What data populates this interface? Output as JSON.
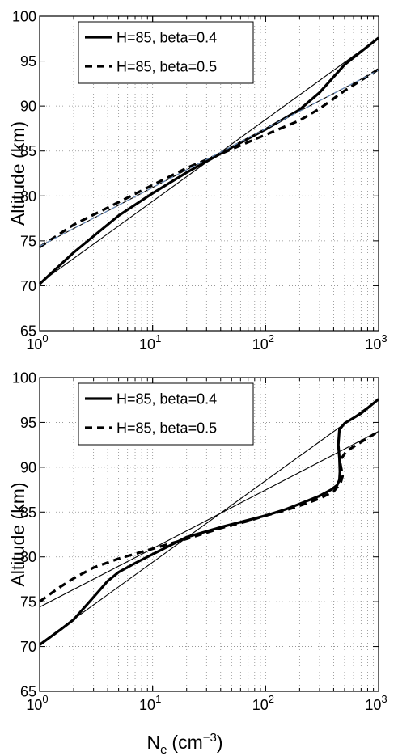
{
  "colors": {
    "axis": "#000000",
    "grid": "#8a8a8a",
    "reference_line_top_dashed": "#6a8fc0"
  },
  "chart_data": [
    {
      "type": "line",
      "xscale": "log",
      "xlim": [
        1,
        1000
      ],
      "ylim": [
        65,
        100
      ],
      "xticks": [
        1,
        10,
        100,
        1000
      ],
      "xtick_labels": [
        {
          "base": "10",
          "exp": "0"
        },
        {
          "base": "10",
          "exp": "1"
        },
        {
          "base": "10",
          "exp": "2"
        },
        {
          "base": "10",
          "exp": "3"
        }
      ],
      "yticks": [
        65,
        70,
        75,
        80,
        85,
        90,
        95,
        100
      ],
      "ytick_labels": [
        "65",
        "70",
        "75",
        "80",
        "85",
        "90",
        "95",
        "100"
      ],
      "ylabel": "Altitude (km)",
      "xlabel": "",
      "grid": "dotted",
      "legend_position": "top-left",
      "legend": [
        "H=85, beta=0.4",
        "H=85, beta=0.5"
      ],
      "series": [
        {
          "name": "H=85, beta=0.4",
          "style": "solid-thick",
          "x": [
            1,
            2,
            5,
            10,
            20,
            50,
            100,
            200,
            300,
            500,
            1000
          ],
          "y": [
            70.2,
            73.7,
            77.8,
            80.3,
            82.6,
            85.4,
            87.4,
            89.6,
            91.5,
            94.6,
            97.6
          ]
        },
        {
          "name": "H=85, beta=0.5",
          "style": "dashed-thick",
          "x": [
            1,
            2,
            5,
            10,
            20,
            50,
            100,
            200,
            300,
            500,
            1000
          ],
          "y": [
            74.3,
            76.8,
            79.3,
            81.2,
            83.1,
            85.2,
            86.8,
            88.4,
            89.7,
            91.7,
            94.1
          ]
        },
        {
          "name": "",
          "style": "solid-thin",
          "x": [
            1,
            1000
          ],
          "y": [
            70.3,
            97.6
          ]
        },
        {
          "name": "",
          "style": "solid-thin",
          "x": [
            1,
            1000
          ],
          "y": [
            74.4,
            94.0
          ]
        },
        {
          "name": "",
          "style": "dashed-thin-blue",
          "x": [
            1,
            1000
          ],
          "y": [
            74.4,
            94.0
          ]
        }
      ]
    },
    {
      "type": "line",
      "xscale": "log",
      "xlim": [
        1,
        1000
      ],
      "ylim": [
        65,
        100
      ],
      "xticks": [
        1,
        10,
        100,
        1000
      ],
      "xtick_labels": [
        {
          "base": "10",
          "exp": "0"
        },
        {
          "base": "10",
          "exp": "1"
        },
        {
          "base": "10",
          "exp": "2"
        },
        {
          "base": "10",
          "exp": "3"
        }
      ],
      "yticks": [
        65,
        70,
        75,
        80,
        85,
        90,
        95,
        100
      ],
      "ytick_labels": [
        "65",
        "70",
        "75",
        "80",
        "85",
        "90",
        "95",
        "100"
      ],
      "ylabel": "Altitude (km)",
      "xlabel": {
        "main": "N",
        "sub": "e",
        "unit": "(cm",
        "unit_exp": "−3",
        "close": ")"
      },
      "grid": "dotted",
      "legend_position": "top-left",
      "legend": [
        "H=85, beta=0.4",
        "H=85, beta=0.5"
      ],
      "series": [
        {
          "name": "H=85, beta=0.4",
          "style": "solid-thick",
          "x": [
            1,
            1.5,
            2,
            3,
            4,
            5,
            7,
            10,
            20,
            40,
            70,
            100,
            150,
            200,
            300,
            380,
            430,
            450,
            455,
            450,
            440,
            450,
            500,
            700,
            1000
          ],
          "y": [
            70.2,
            71.8,
            73.0,
            75.5,
            77.3,
            78.3,
            79.3,
            80.3,
            82.2,
            83.3,
            84.1,
            84.6,
            85.3,
            85.9,
            86.8,
            87.5,
            88.0,
            88.6,
            89.5,
            91.0,
            92.5,
            94.2,
            94.9,
            96.0,
            97.6
          ]
        },
        {
          "name": "H=85, beta=0.5",
          "style": "dashed-thick",
          "x": [
            1,
            1.5,
            2,
            3,
            5,
            10,
            20,
            40,
            70,
            100,
            150,
            200,
            300,
            400,
            460,
            480,
            470,
            460,
            470,
            520,
            700,
            1000
          ],
          "y": [
            75.0,
            76.6,
            77.6,
            78.8,
            79.8,
            80.9,
            82.0,
            83.2,
            84.0,
            84.6,
            85.2,
            85.7,
            86.5,
            87.3,
            88.2,
            89.0,
            89.7,
            90.3,
            91.0,
            91.8,
            92.8,
            94.0
          ]
        },
        {
          "name": "",
          "style": "solid-thin",
          "x": [
            1,
            1000
          ],
          "y": [
            70.3,
            97.6
          ]
        },
        {
          "name": "",
          "style": "solid-thin",
          "x": [
            1,
            1000
          ],
          "y": [
            74.4,
            94.0
          ]
        }
      ]
    }
  ]
}
